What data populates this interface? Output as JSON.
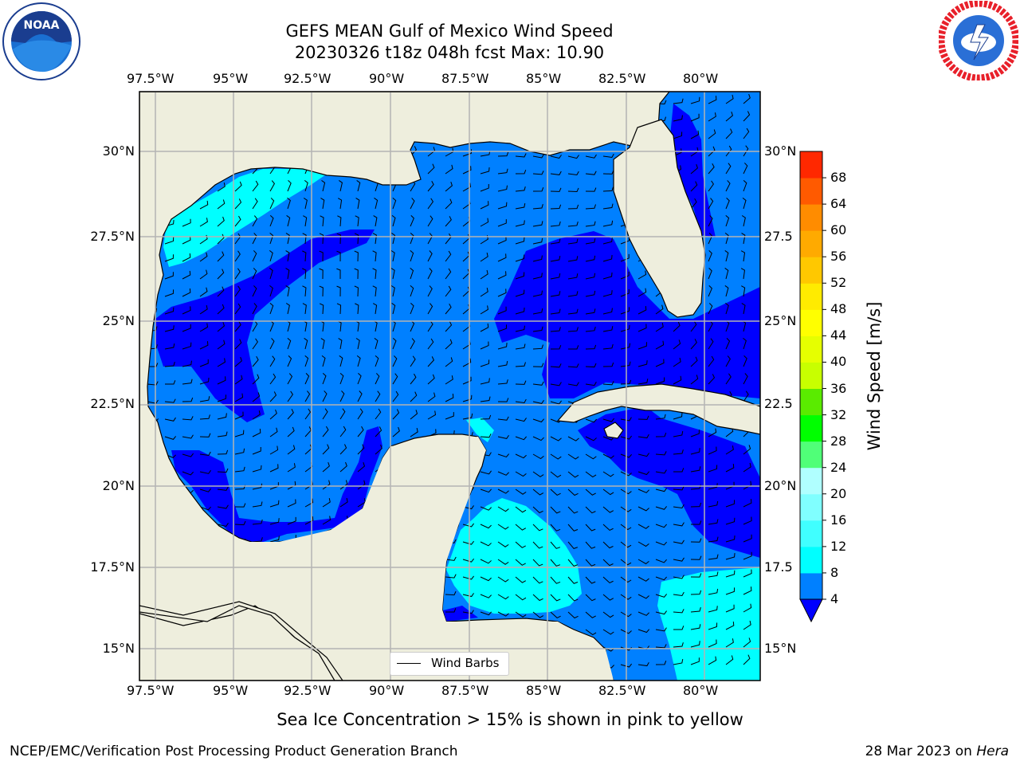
{
  "title_line1": "GEFS MEAN Gulf of Mexico Wind Speed",
  "title_line2": "20230326 t18z 048h fcst   Max: 10.90",
  "logos": {
    "noaa_text": "NOAA",
    "noaa_ring": "NATIONAL OCEANIC AND ATMOSPHERIC ADMINISTRATION · U.S. DEPARTMENT OF COMMERCE",
    "nws_ring": "NATIONAL WEATHER SERVICE"
  },
  "lon_labels": [
    "97.5°W",
    "95°W",
    "92.5°W",
    "90°W",
    "87.5°W",
    "85°W",
    "82.5°W",
    "80°W"
  ],
  "lat_labels_left": [
    "30°N",
    "27.5°N",
    "25°N",
    "22.5°N",
    "20°N",
    "17.5°N",
    "15°N"
  ],
  "lat_labels_right": [
    "30°N",
    "27.5",
    "25°N",
    "22.5",
    "20°N",
    "17.5",
    "15°N"
  ],
  "legend_label": "Wind Barbs",
  "colorbar": {
    "label": "Wind Speed [m/s]",
    "ticks": [
      "4",
      "8",
      "12",
      "16",
      "20",
      "24",
      "28",
      "32",
      "36",
      "40",
      "44",
      "48",
      "52",
      "56",
      "60",
      "64",
      "68"
    ],
    "colors": [
      "#0080ff",
      "#00ffff",
      "#40ffff",
      "#80ffff",
      "#b0ffff",
      "#50ff78",
      "#00ff00",
      "#5aeb00",
      "#c8ff00",
      "#e6ff00",
      "#ffff00",
      "#ffeb00",
      "#ffc800",
      "#ffaa00",
      "#ff8c00",
      "#ff5a00",
      "#ff2800",
      "#ff0000"
    ],
    "extend_color": "#0000ff"
  },
  "colors": {
    "land": "#eeeedd",
    "level_0_4": "#0000ff",
    "level_4_8": "#0080ff",
    "level_8_12": "#00ffff",
    "grid": "#b4b4b4"
  },
  "note": "Sea Ice Concentration > 15% is shown in pink to yellow",
  "footer_left": "NCEP/EMC/Verification Post Processing Product Generation Branch",
  "footer_right_date": "28 Mar 2023 on",
  "footer_right_host": "Hera"
}
